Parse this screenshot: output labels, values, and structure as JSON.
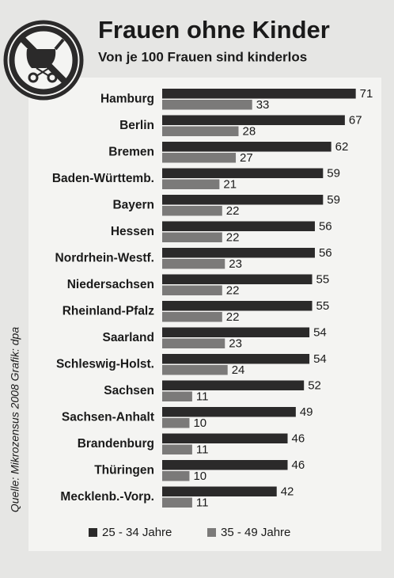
{
  "chart_data": {
    "type": "bar",
    "orientation": "horizontal",
    "title": "Frauen ohne Kinder",
    "subtitle": "Von je 100 Frauen sind kinderlos",
    "source": "Quelle: Mikrozensus 2008   Grafik: dpa",
    "categories": [
      "Hamburg",
      "Berlin",
      "Bremen",
      "Baden-Württemb.",
      "Bayern",
      "Hessen",
      "Nordrhein-Westf.",
      "Niedersachsen",
      "Rheinland-Pfalz",
      "Saarland",
      "Schleswig-Holst.",
      "Sachsen",
      "Sachsen-Anhalt",
      "Brandenburg",
      "Thüringen",
      "Mecklenb.-Vorp."
    ],
    "series": [
      {
        "name": "25 - 34 Jahre",
        "color": "#2b2a2a",
        "values": [
          71,
          67,
          62,
          59,
          59,
          56,
          56,
          55,
          55,
          54,
          54,
          52,
          49,
          46,
          46,
          42
        ]
      },
      {
        "name": "35 - 49 Jahre",
        "color": "#7b7a79",
        "values": [
          33,
          28,
          27,
          21,
          22,
          22,
          23,
          22,
          22,
          23,
          24,
          11,
          10,
          11,
          10,
          11
        ]
      }
    ],
    "xlim": [
      0,
      74
    ]
  }
}
